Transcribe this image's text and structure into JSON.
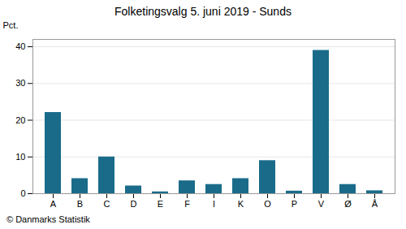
{
  "chart_data": {
    "type": "bar",
    "title": "Folketingsvalg 5. juni 2019 - Sunds",
    "categories": [
      "A",
      "B",
      "C",
      "D",
      "E",
      "F",
      "I",
      "K",
      "O",
      "P",
      "V",
      "Ø",
      "Å"
    ],
    "values": [
      22.1,
      4.1,
      10.0,
      2.1,
      0.5,
      3.5,
      2.5,
      4.1,
      9.0,
      0.7,
      39.0,
      2.5,
      0.8
    ],
    "color": "#1a6b8a",
    "ylabel": "Pct.",
    "caption": "© Danmarks Statistik",
    "ylim": [
      0,
      42
    ],
    "yticks": [
      0,
      10,
      20,
      30,
      40
    ],
    "grid": true
  }
}
